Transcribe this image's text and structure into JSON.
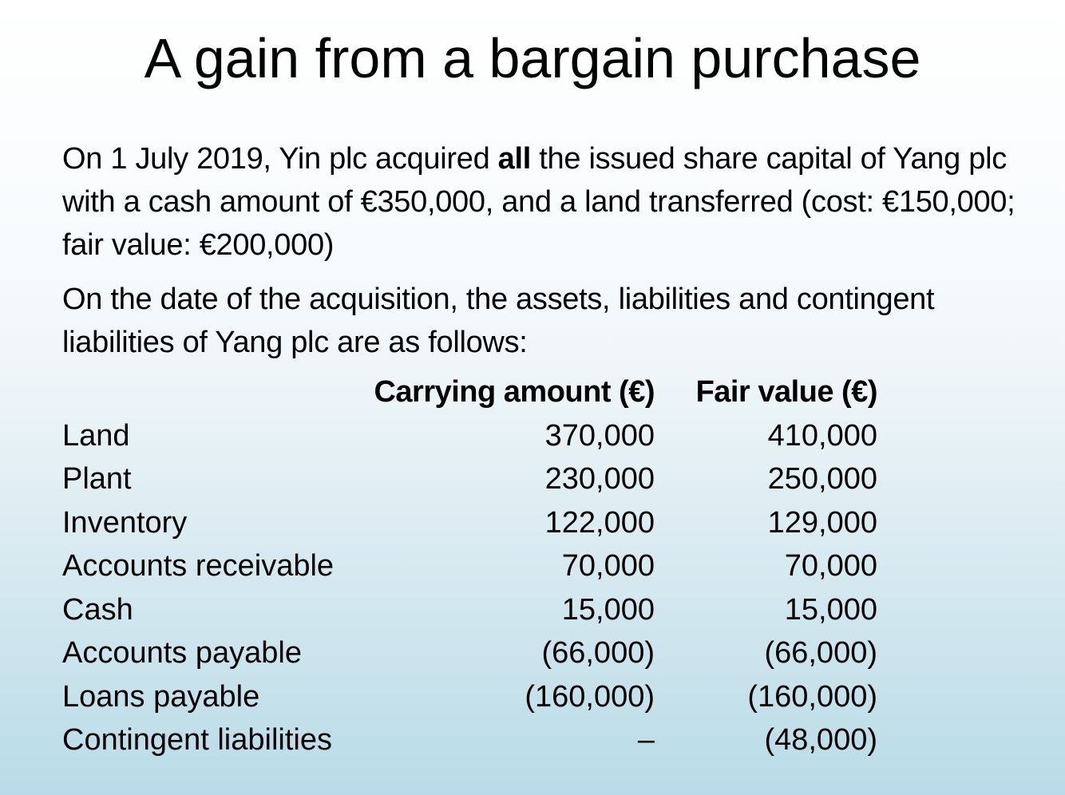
{
  "title": "A gain from a bargain purchase",
  "paragraph1": {
    "before": "On 1 July 2019, Yin plc acquired ",
    "bold": "all",
    "after": " the issued share capital of Yang plc with a cash amount of €350,000, and a land transferred (cost: €150,000; fair value: €200,000)"
  },
  "paragraph2": "On the date of the acquisition, the assets, liabilities and contingent liabilities of Yang plc are as follows:",
  "table": {
    "headers": {
      "carrying_amount": "Carrying amount (€)",
      "fair_value": "Fair value (€)"
    },
    "rows": [
      {
        "label": "Land",
        "carrying": "370,000",
        "fair": "410,000"
      },
      {
        "label": "Plant",
        "carrying": "230,000",
        "fair": "250,000"
      },
      {
        "label": "Inventory",
        "carrying": "122,000",
        "fair": "129,000"
      },
      {
        "label": "Accounts receivable",
        "carrying": "70,000",
        "fair": "70,000"
      },
      {
        "label": "Cash",
        "carrying": "15,000",
        "fair": "15,000"
      },
      {
        "label": "Accounts payable",
        "carrying": "(66,000)",
        "fair": "(66,000)"
      },
      {
        "label": "Loans payable",
        "carrying": "(160,000)",
        "fair": "(160,000)"
      },
      {
        "label": "Contingent liabilities",
        "carrying": "–",
        "fair": "(48,000)"
      }
    ]
  }
}
